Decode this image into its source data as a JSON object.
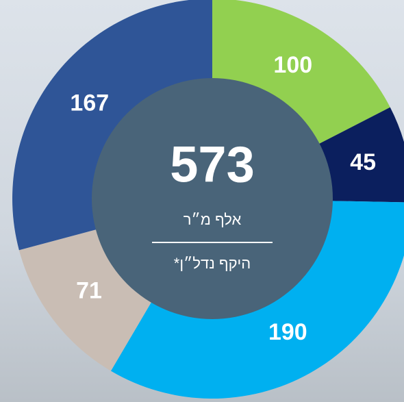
{
  "chart_data": {
    "type": "donut",
    "values": [
      100,
      45,
      190,
      71,
      167
    ],
    "colors": [
      "#92d050",
      "#0b1f5e",
      "#00b0f0",
      "#c9bdb4",
      "#2f5597"
    ],
    "center_value": 573,
    "center_unit": "אלף מ״ר",
    "center_caption": "היקף נדל״ן*"
  }
}
